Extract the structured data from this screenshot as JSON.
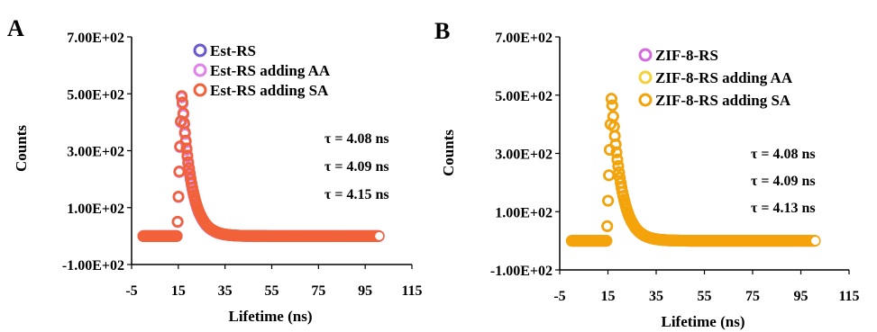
{
  "panels": [
    {
      "letter": "A"
    },
    {
      "letter": "B"
    }
  ],
  "chart_data": [
    {
      "type": "scatter",
      "title": "",
      "xlabel": "Lifetime (ns)",
      "ylabel": "Counts",
      "xlim": [
        -5,
        115
      ],
      "ylim": [
        -100,
        700
      ],
      "xticks": [
        "-5",
        "15",
        "35",
        "55",
        "75",
        "95",
        "115"
      ],
      "yticks": [
        "-1.00E+02",
        "1.00E+02",
        "3.00E+02",
        "5.00E+02",
        "7.00E+02"
      ],
      "legend_position": "top-center",
      "series": [
        {
          "name": "Est-RS",
          "color": "#6a5acd",
          "peak": 500,
          "peak_x": 16.5,
          "tau": 4.08
        },
        {
          "name": "Est-RS adding AA",
          "color": "#e083e8",
          "peak": 500,
          "peak_x": 16.5,
          "tau": 4.09
        },
        {
          "name": "Est-RS adding SA",
          "color": "#f2623a",
          "peak": 505,
          "peak_x": 16.5,
          "tau": 4.15
        }
      ],
      "annotations": [
        "τ = 4.08 ns",
        "τ = 4.09 ns",
        "τ = 4.15 ns"
      ],
      "baseline": 0,
      "x_end": 101
    },
    {
      "type": "scatter",
      "title": "",
      "xlabel": "Lifetime (ns)",
      "ylabel": "Counts",
      "xlim": [
        -5,
        115
      ],
      "ylim": [
        -100,
        700
      ],
      "xticks": [
        "-5",
        "15",
        "35",
        "55",
        "75",
        "95",
        "115"
      ],
      "yticks": [
        "-1.00E+02",
        "1.00E+02",
        "3.00E+02",
        "5.00E+02",
        "7.00E+02"
      ],
      "legend_position": "top-center",
      "series": [
        {
          "name": "ZIF-8-RS",
          "color": "#d56adf",
          "peak": 500,
          "peak_x": 16.5,
          "tau": 4.08
        },
        {
          "name": "ZIF-8-RS adding AA",
          "color": "#f4d23c",
          "peak": 500,
          "peak_x": 16.5,
          "tau": 4.09
        },
        {
          "name": "ZIF-8-RS adding SA",
          "color": "#f4a40b",
          "peak": 500,
          "peak_x": 16.5,
          "tau": 4.13
        }
      ],
      "annotations": [
        "τ = 4.08 ns",
        "τ = 4.09 ns",
        "τ = 4.13 ns"
      ],
      "baseline": 0,
      "x_end": 101
    }
  ]
}
